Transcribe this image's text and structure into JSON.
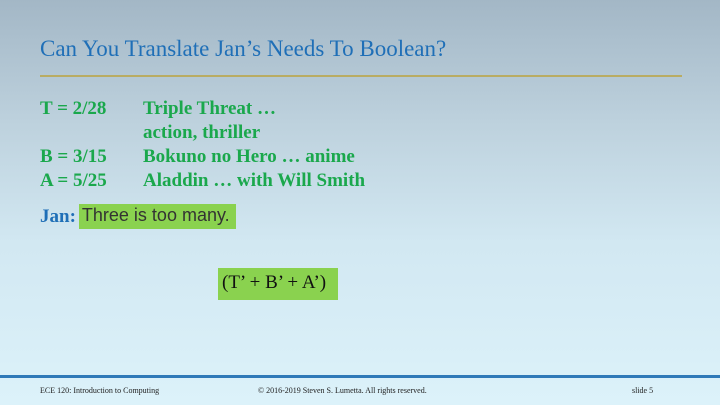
{
  "title": "Can You Translate Jan’s Needs To Boolean?",
  "definitions": [
    {
      "label": "T = 2/28",
      "text": "Triple Threat …"
    },
    {
      "label": "",
      "text": "action, thriller"
    },
    {
      "label": "B = 3/15",
      "text": "Bokuno no Hero … anime"
    },
    {
      "label": "A = 5/25",
      "text": "Aladdin … with Will Smith"
    }
  ],
  "jan": {
    "speaker": "Jan:",
    "quote": "Three is too many."
  },
  "expression": "(T’ + B’ + A’)",
  "footer": {
    "course": "ECE 120: Introduction to Computing",
    "copyright": "© 2016-2019 Steven S. Lumetta.  All rights reserved.",
    "slide": "slide 5"
  },
  "colors": {
    "title": "#1f6fb7",
    "definitions": "#1aa84c",
    "highlight": "#8ad24f",
    "footer_rule": "#2f79b8"
  }
}
